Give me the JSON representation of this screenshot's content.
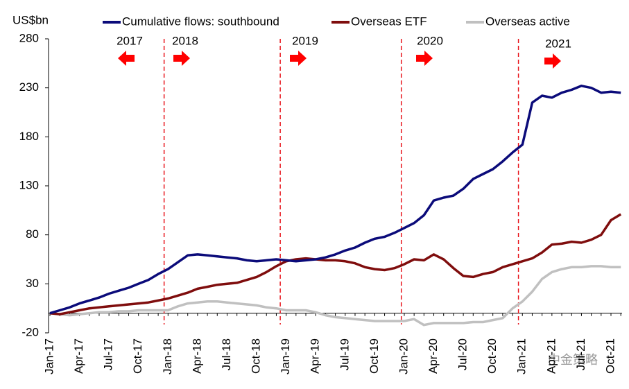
{
  "chart_data": {
    "type": "line",
    "y_unit_label": "US$bn",
    "categories": [
      "Jan-17",
      null,
      null,
      "Apr-17",
      null,
      null,
      "Jul-17",
      null,
      null,
      "Oct-17",
      null,
      null,
      "Jan-18",
      null,
      null,
      "Apr-18",
      null,
      null,
      "Jul-18",
      null,
      null,
      "Oct-18",
      null,
      null,
      "Jan-19",
      null,
      null,
      "Apr-19",
      null,
      null,
      "Jul-19",
      null,
      null,
      "Oct-19",
      null,
      null,
      "Jan-20",
      null,
      null,
      "Apr-20",
      null,
      null,
      "Jul-20",
      null,
      null,
      "Oct-20",
      null,
      null,
      "Jan-21",
      null,
      null,
      "Apr-21",
      null,
      null,
      "Jul-21",
      null,
      null,
      "Oct-21",
      null
    ],
    "series": [
      {
        "name": "Cumulative flows: southbound",
        "color": "#0b0b7a",
        "values": [
          0,
          3,
          6,
          10,
          13,
          16,
          20,
          23,
          26,
          30,
          34,
          40,
          45,
          52,
          59,
          60,
          59,
          58,
          57,
          56,
          54,
          53,
          54,
          55,
          54,
          53,
          54,
          55,
          57,
          60,
          64,
          67,
          72,
          76,
          78,
          82,
          87,
          92,
          100,
          115,
          118,
          120,
          127,
          137,
          142,
          147,
          155,
          164,
          172,
          215,
          222,
          220,
          225,
          228,
          232,
          230,
          225,
          226,
          225
        ]
      },
      {
        "name": "Overseas ETF",
        "color": "#7f0d0d",
        "values": [
          0,
          -1,
          1,
          3,
          5,
          6,
          7,
          8,
          9,
          10,
          11,
          13,
          15,
          18,
          21,
          25,
          27,
          29,
          30,
          31,
          34,
          37,
          42,
          48,
          53,
          55,
          56,
          55,
          54,
          54,
          53,
          51,
          47,
          45,
          44,
          46,
          50,
          55,
          54,
          60,
          55,
          46,
          38,
          37,
          40,
          42,
          47,
          50,
          53,
          56,
          62,
          70,
          71,
          73,
          72,
          75,
          80,
          95,
          101
        ]
      },
      {
        "name": "Overseas active",
        "color": "#c0c0c0",
        "values": [
          0,
          -1,
          -2,
          -1,
          0,
          1,
          1,
          2,
          2,
          3,
          3,
          3,
          3,
          7,
          10,
          11,
          12,
          12,
          11,
          10,
          9,
          8,
          6,
          5,
          3,
          3,
          3,
          1,
          -2,
          -4,
          -5,
          -6,
          -7,
          -8,
          -8,
          -8,
          -8,
          -6,
          -12,
          -10,
          -10,
          -10,
          -10,
          -9,
          -9,
          -7,
          -5,
          5,
          12,
          22,
          35,
          42,
          45,
          47,
          47,
          48,
          48,
          47,
          47
        ]
      }
    ],
    "ylim": [
      -20,
      280
    ],
    "yticks": [
      -20,
      30,
      80,
      130,
      180,
      230,
      280
    ],
    "annotations": [
      {
        "text": "2017",
        "direction": "left"
      },
      {
        "text": "2018",
        "direction": "right"
      },
      {
        "text": "2019",
        "direction": "right"
      },
      {
        "text": "2020",
        "direction": "right"
      },
      {
        "text": "2021",
        "direction": "right"
      }
    ],
    "watermark": "中金策略"
  }
}
